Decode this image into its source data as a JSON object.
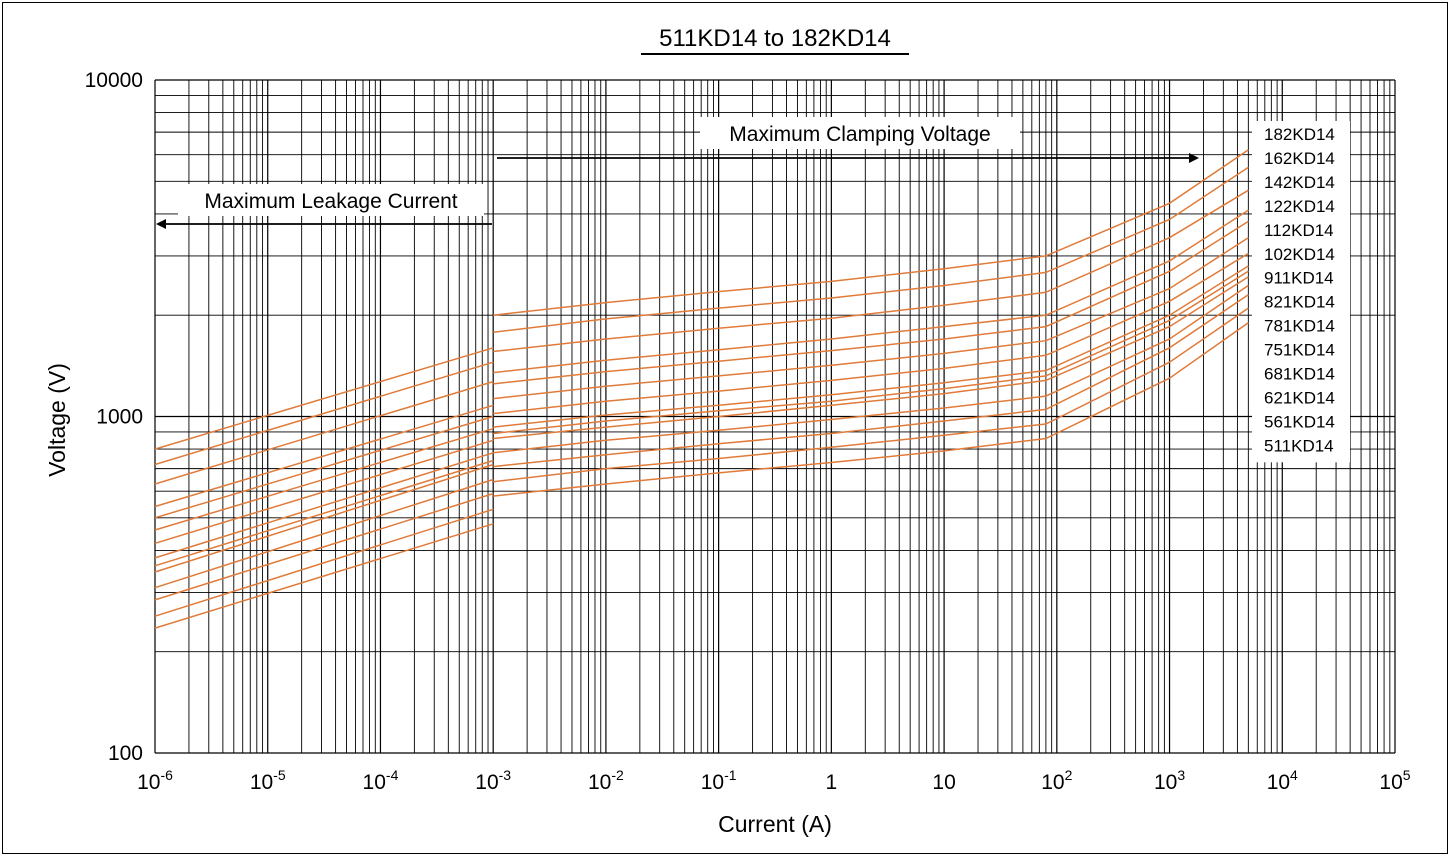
{
  "chart_data": {
    "type": "line",
    "title": "511KD14 to 182KD14",
    "xlabel": "Current (A)",
    "ylabel": "Voltage (V)",
    "xscale": "log",
    "yscale": "log",
    "xlim": [
      1e-06,
      100000
    ],
    "ylim": [
      100,
      10000
    ],
    "grid": true,
    "x_tick_labels": [
      {
        "base": "10",
        "exp": "-6"
      },
      {
        "base": "10",
        "exp": "-5"
      },
      {
        "base": "10",
        "exp": "-4"
      },
      {
        "base": "10",
        "exp": "-3"
      },
      {
        "base": "10",
        "exp": "-2"
      },
      {
        "base": "10",
        "exp": "-1"
      },
      {
        "base": "1",
        "exp": ""
      },
      {
        "base": "10",
        "exp": ""
      },
      {
        "base": "10",
        "exp": "2"
      },
      {
        "base": "10",
        "exp": "3"
      },
      {
        "base": "10",
        "exp": "4"
      },
      {
        "base": "10",
        "exp": "5"
      }
    ],
    "y_tick_labels": [
      "10000",
      "1000",
      "100"
    ],
    "line_color": "#e07b39",
    "annotations": {
      "leakage": "Maximum Leakage Current",
      "clamping": "Maximum Clamping Voltage"
    },
    "legend_position": "right",
    "series": [
      {
        "name": "182KD14",
        "leakage": [
          [
            1e-06,
            800
          ],
          [
            0.001,
            1600
          ]
        ],
        "clamping": [
          [
            0.001,
            2000
          ],
          [
            0.01,
            2180
          ],
          [
            0.1,
            2350
          ],
          [
            1,
            2520
          ],
          [
            10,
            2750
          ],
          [
            80,
            3000
          ],
          [
            1000,
            4300
          ],
          [
            5000,
            6200
          ]
        ]
      },
      {
        "name": "162KD14",
        "leakage": [
          [
            1e-06,
            720
          ],
          [
            0.001,
            1450
          ]
        ],
        "clamping": [
          [
            0.001,
            1780
          ],
          [
            0.01,
            1950
          ],
          [
            0.1,
            2100
          ],
          [
            1,
            2250
          ],
          [
            10,
            2450
          ],
          [
            80,
            2680
          ],
          [
            1000,
            3850
          ],
          [
            5000,
            5500
          ]
        ]
      },
      {
        "name": "142KD14",
        "leakage": [
          [
            1e-06,
            630
          ],
          [
            0.001,
            1270
          ]
        ],
        "clamping": [
          [
            0.001,
            1560
          ],
          [
            0.01,
            1700
          ],
          [
            0.1,
            1830
          ],
          [
            1,
            1960
          ],
          [
            10,
            2140
          ],
          [
            80,
            2340
          ],
          [
            1000,
            3400
          ],
          [
            5000,
            4700
          ]
        ]
      },
      {
        "name": "122KD14",
        "leakage": [
          [
            1e-06,
            540
          ],
          [
            0.001,
            1080
          ]
        ],
        "clamping": [
          [
            0.001,
            1350
          ],
          [
            0.01,
            1470
          ],
          [
            0.1,
            1580
          ],
          [
            1,
            1700
          ],
          [
            10,
            1850
          ],
          [
            80,
            2000
          ],
          [
            1000,
            2900
          ],
          [
            5000,
            4100
          ]
        ]
      },
      {
        "name": "112KD14",
        "leakage": [
          [
            1e-06,
            500
          ],
          [
            0.001,
            1000
          ]
        ],
        "clamping": [
          [
            0.001,
            1250
          ],
          [
            0.01,
            1360
          ],
          [
            0.1,
            1460
          ],
          [
            1,
            1570
          ],
          [
            10,
            1700
          ],
          [
            80,
            1850
          ],
          [
            1000,
            2700
          ],
          [
            5000,
            3800
          ]
        ]
      },
      {
        "name": "102KD14",
        "leakage": [
          [
            1e-06,
            460
          ],
          [
            0.001,
            920
          ]
        ],
        "clamping": [
          [
            0.001,
            1130
          ],
          [
            0.01,
            1230
          ],
          [
            0.1,
            1320
          ],
          [
            1,
            1420
          ],
          [
            10,
            1540
          ],
          [
            80,
            1680
          ],
          [
            1000,
            2400
          ],
          [
            5000,
            3400
          ]
        ]
      },
      {
        "name": "911KD14",
        "leakage": [
          [
            1e-06,
            420
          ],
          [
            0.001,
            850
          ]
        ],
        "clamping": [
          [
            0.001,
            1020
          ],
          [
            0.01,
            1110
          ],
          [
            0.1,
            1190
          ],
          [
            1,
            1280
          ],
          [
            10,
            1390
          ],
          [
            80,
            1520
          ],
          [
            1000,
            2200
          ],
          [
            5000,
            3050
          ]
        ]
      },
      {
        "name": "821KD14",
        "leakage": [
          [
            1e-06,
            380
          ],
          [
            0.001,
            780
          ]
        ],
        "clamping": [
          [
            0.001,
            930
          ],
          [
            0.01,
            1010
          ],
          [
            0.1,
            1080
          ],
          [
            1,
            1160
          ],
          [
            10,
            1260
          ],
          [
            80,
            1370
          ],
          [
            1000,
            2000
          ],
          [
            5000,
            2800
          ]
        ]
      },
      {
        "name": "781KD14",
        "leakage": [
          [
            1e-06,
            360
          ],
          [
            0.001,
            740
          ]
        ],
        "clamping": [
          [
            0.001,
            890
          ],
          [
            0.01,
            970
          ],
          [
            0.1,
            1040
          ],
          [
            1,
            1110
          ],
          [
            10,
            1210
          ],
          [
            80,
            1320
          ],
          [
            1000,
            1930
          ],
          [
            5000,
            2700
          ]
        ]
      },
      {
        "name": "751KD14",
        "leakage": [
          [
            1e-06,
            345
          ],
          [
            0.001,
            720
          ]
        ],
        "clamping": [
          [
            0.001,
            860
          ],
          [
            0.01,
            930
          ],
          [
            0.1,
            1000
          ],
          [
            1,
            1080
          ],
          [
            10,
            1170
          ],
          [
            80,
            1280
          ],
          [
            1000,
            1850
          ],
          [
            5000,
            2600
          ]
        ]
      },
      {
        "name": "681KD14",
        "leakage": [
          [
            1e-06,
            310
          ],
          [
            0.001,
            650
          ]
        ],
        "clamping": [
          [
            0.001,
            780
          ],
          [
            0.01,
            850
          ],
          [
            0.1,
            910
          ],
          [
            1,
            980
          ],
          [
            10,
            1060
          ],
          [
            80,
            1150
          ],
          [
            1000,
            1700
          ],
          [
            5000,
            2450
          ]
        ]
      },
      {
        "name": "621KD14",
        "leakage": [
          [
            1e-06,
            285
          ],
          [
            0.001,
            590
          ]
        ],
        "clamping": [
          [
            0.001,
            710
          ],
          [
            0.01,
            770
          ],
          [
            0.1,
            830
          ],
          [
            1,
            890
          ],
          [
            10,
            970
          ],
          [
            80,
            1050
          ],
          [
            1000,
            1600
          ],
          [
            5000,
            2300
          ]
        ]
      },
      {
        "name": "561KD14",
        "leakage": [
          [
            1e-06,
            255
          ],
          [
            0.001,
            530
          ]
        ],
        "clamping": [
          [
            0.001,
            640
          ],
          [
            0.01,
            700
          ],
          [
            0.1,
            750
          ],
          [
            1,
            810
          ],
          [
            10,
            880
          ],
          [
            80,
            950
          ],
          [
            1000,
            1450
          ],
          [
            5000,
            2100
          ]
        ]
      },
      {
        "name": "511KD14",
        "leakage": [
          [
            1e-06,
            235
          ],
          [
            0.001,
            480
          ]
        ],
        "clamping": [
          [
            0.001,
            580
          ],
          [
            0.01,
            630
          ],
          [
            0.1,
            680
          ],
          [
            1,
            730
          ],
          [
            10,
            790
          ],
          [
            80,
            860
          ],
          [
            1000,
            1300
          ],
          [
            5000,
            1900
          ]
        ]
      }
    ]
  }
}
